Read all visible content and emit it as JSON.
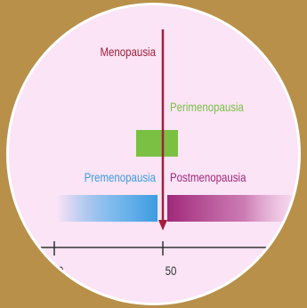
{
  "diagram": {
    "menopause_label": "Menopausia",
    "perimenopause_label": "Perimenopausia",
    "premenopause_label": "Premenopausia",
    "postmenopause_label": "Postmenopausia",
    "axis_ticks": [
      "40",
      "50"
    ],
    "colors": {
      "background": "#b8904a",
      "disc": "#fbe4f6",
      "menopause_line": "#a0203a",
      "perimenopause": "#7ac143",
      "premenopause": "#3b9be0",
      "postmenopause": "#a0287a",
      "axis": "#333333"
    }
  }
}
